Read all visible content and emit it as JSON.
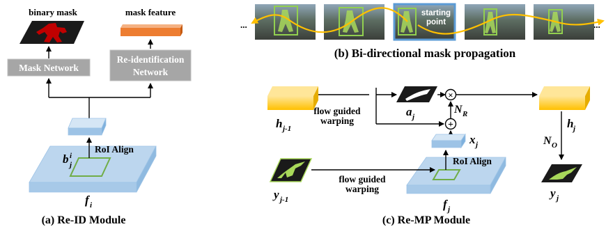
{
  "panel_a": {
    "binary_mask_label": "binary mask",
    "mask_feature_label": "mask feature",
    "mask_network_label": "Mask Network",
    "reid_network_line1": "Re-identification",
    "reid_network_line2": "Network",
    "roi_align_label": "RoI Align",
    "box_label": "b",
    "box_sub": "j",
    "box_sup": "i",
    "feature_label": "f",
    "feature_sub": "i",
    "caption": "(a) Re-ID Module"
  },
  "panel_b": {
    "left_ellipsis": "...",
    "right_ellipsis": "...",
    "starting_point_line1": "starting",
    "starting_point_line2": "point",
    "caption": "(b) Bi-directional mask propagation"
  },
  "panel_c": {
    "flow_warping_top_line1": "flow guided",
    "flow_warping_top_line2": "warping",
    "flow_warping_bottom_line1": "flow guided",
    "flow_warping_bottom_line2": "warping",
    "roi_align_label": "RoI Align",
    "h_prev": "h",
    "h_prev_sub": "j-1",
    "a_label": "a",
    "a_sub": "j",
    "x_label": "x",
    "x_sub": "j",
    "nr_label": "N",
    "nr_sub": "R",
    "no_label": "N",
    "no_sub": "O",
    "h_label": "h",
    "h_sub": "j",
    "y_prev": "y",
    "y_prev_sub": "j-1",
    "y_label": "y",
    "y_sub": "j",
    "f_label": "f",
    "f_sub": "j",
    "multiply_symbol": "×",
    "plus_symbol": "+",
    "caption": "(c) Re-MP Module"
  },
  "colors": {
    "feature_blue": "#bcd6ee",
    "gray_box": "#a6a6a6",
    "orange": "#ed7d31",
    "yellow": "#ffd966",
    "mask_red": "#c00000",
    "mask_green": "#a8d85a",
    "arrow_orange": "#ffc000",
    "box_green": "#92d050",
    "start_blue": "#5b9bd5"
  }
}
